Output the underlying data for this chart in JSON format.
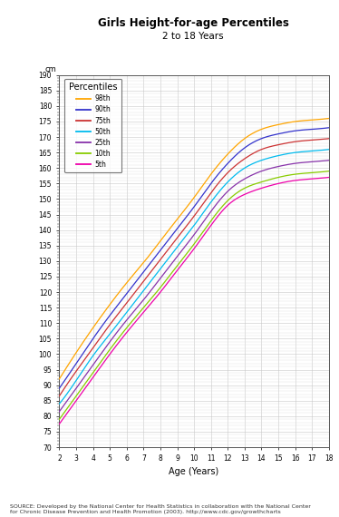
{
  "title": "Girls Height-for-age Percentiles",
  "subtitle": "2 to 18 Years",
  "xlabel": "Age (Years)",
  "ylabel_top": "cm",
  "source_text": "SOURCE: Developed by the National Center for Health Statistics in collaboration with the National Center\nfor Chronic Disease Prevention and Health Promotion (2003). http://www.cdc.gov/growthcharts",
  "x_min": 2,
  "x_max": 18,
  "y_min": 70,
  "y_max": 190,
  "y_tick_major": 5,
  "percentiles": [
    "98th",
    "90th",
    "75th",
    "50th",
    "25th",
    "10th",
    "5th"
  ],
  "colors": [
    "#FFA500",
    "#3333CC",
    "#CC3333",
    "#00BBEE",
    "#8833AA",
    "#88CC00",
    "#EE00AA"
  ],
  "age_data": [
    2,
    3,
    4,
    5,
    6,
    7,
    8,
    9,
    10,
    11,
    12,
    13,
    14,
    15,
    16,
    17,
    18
  ],
  "height_data": {
    "98th": [
      92.0,
      100.5,
      108.5,
      116.0,
      123.0,
      129.5,
      136.5,
      143.5,
      150.5,
      158.0,
      164.5,
      169.5,
      172.5,
      174.0,
      175.0,
      175.5,
      176.0
    ],
    "90th": [
      89.0,
      97.0,
      105.0,
      112.5,
      119.5,
      126.5,
      133.5,
      140.5,
      147.5,
      155.0,
      161.5,
      166.5,
      169.5,
      171.0,
      172.0,
      172.5,
      173.0
    ],
    "75th": [
      86.5,
      94.5,
      102.0,
      109.5,
      116.5,
      123.5,
      130.5,
      137.5,
      144.5,
      152.0,
      158.5,
      163.0,
      166.0,
      167.5,
      168.5,
      169.0,
      169.5
    ],
    "50th": [
      84.0,
      91.5,
      99.5,
      106.5,
      113.5,
      120.5,
      127.5,
      134.5,
      141.5,
      149.0,
      155.5,
      160.0,
      162.5,
      164.0,
      165.0,
      165.5,
      166.0
    ],
    "25th": [
      81.5,
      89.0,
      96.5,
      104.0,
      111.0,
      117.5,
      124.5,
      131.5,
      138.5,
      146.0,
      152.5,
      156.5,
      159.0,
      160.5,
      161.5,
      162.0,
      162.5
    ],
    "10th": [
      79.0,
      86.5,
      94.0,
      101.5,
      108.5,
      115.0,
      121.5,
      128.5,
      135.5,
      143.0,
      149.5,
      153.5,
      155.5,
      157.0,
      158.0,
      158.5,
      159.0
    ],
    "5th": [
      77.5,
      85.0,
      92.5,
      100.0,
      107.0,
      113.5,
      120.0,
      127.0,
      134.0,
      141.5,
      148.0,
      151.5,
      153.5,
      155.0,
      156.0,
      156.5,
      157.0
    ]
  },
  "fig_width": 3.74,
  "fig_height": 5.7,
  "dpi": 100
}
